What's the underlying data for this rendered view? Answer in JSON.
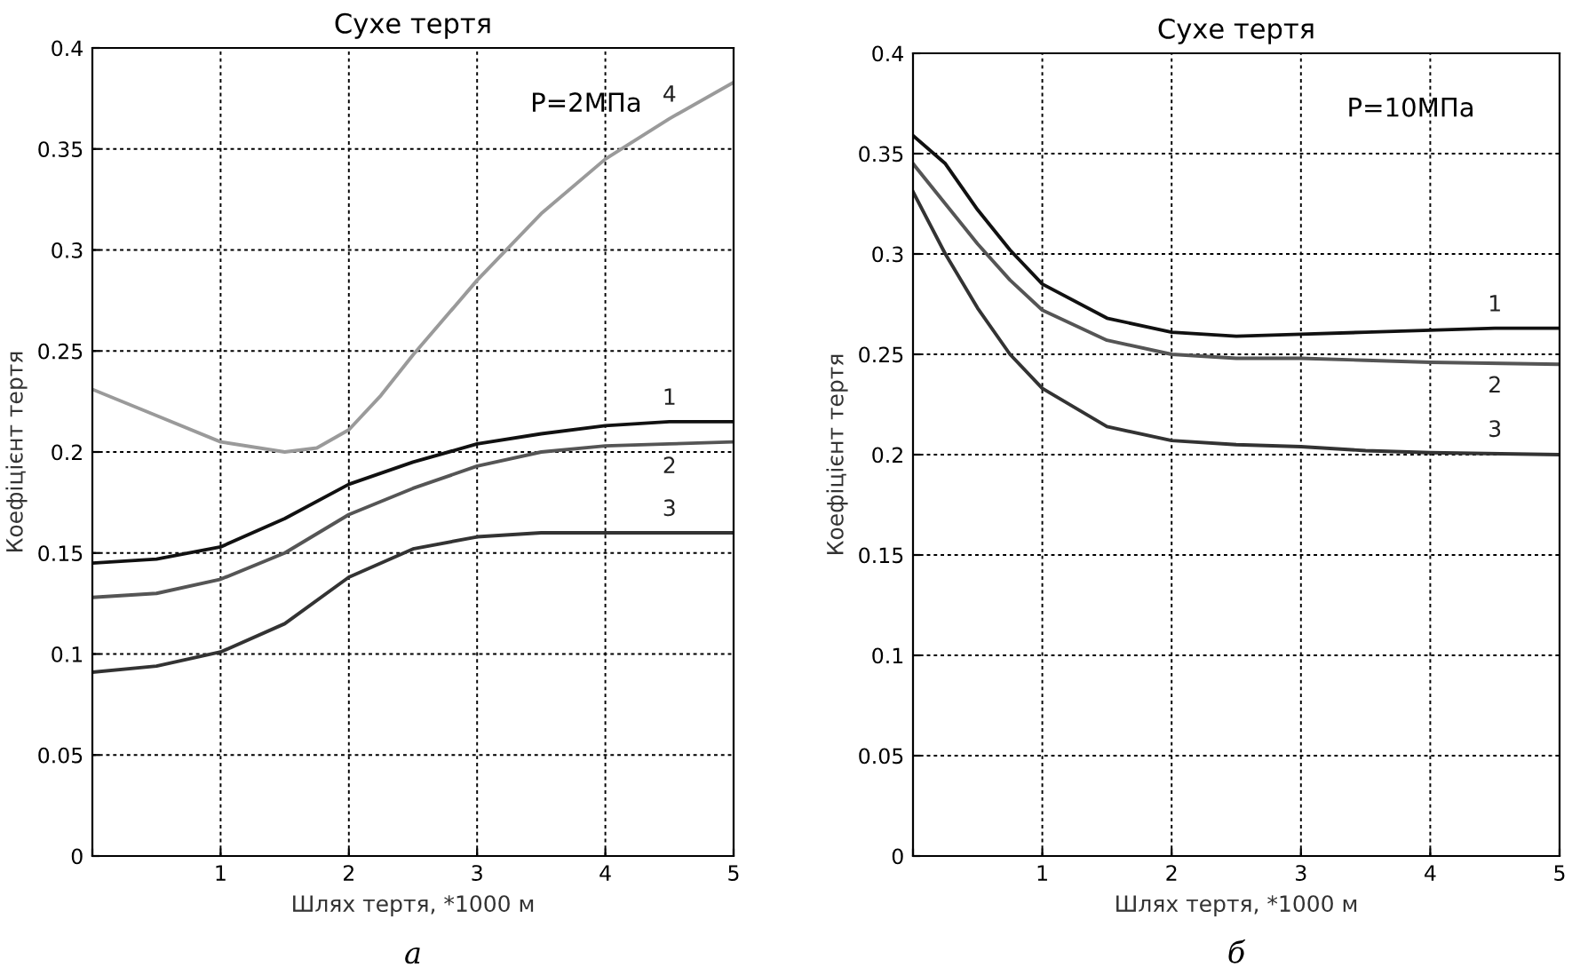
{
  "chart_data": [
    {
      "type": "line",
      "title": "Сухе тертя",
      "xlabel": "Шлях тертя, *1000 м",
      "ylabel": "Коефіцієнт тертя",
      "xlim": [
        0,
        5
      ],
      "xticks": [
        {
          "value": 0,
          "label": null
        },
        1,
        2,
        3,
        4,
        5
      ],
      "ylim": [
        0,
        0.4
      ],
      "yticks": [
        0,
        0.05,
        0.1,
        0.15,
        0.2,
        0.25,
        0.3,
        0.35,
        0.4
      ],
      "grid": true,
      "line_style": "solid",
      "marker": "none",
      "annotations": [
        "P=2МПа",
        "а"
      ],
      "series": [
        {
          "name": "4",
          "color": "#9a9a9a",
          "x": [
            0,
            0.5,
            1,
            1.5,
            1.75,
            2,
            2.25,
            2.5,
            3,
            3.5,
            4,
            4.5,
            5
          ],
          "values": [
            0.231,
            0.218,
            0.205,
            0.2,
            0.202,
            0.211,
            0.228,
            0.248,
            0.285,
            0.318,
            0.345,
            0.365,
            0.383
          ]
        },
        {
          "name": "1",
          "color": "#111111",
          "x": [
            0,
            0.5,
            1,
            1.5,
            2,
            2.5,
            3,
            3.5,
            4,
            4.5,
            5
          ],
          "values": [
            0.145,
            0.147,
            0.153,
            0.167,
            0.184,
            0.195,
            0.204,
            0.209,
            0.213,
            0.215,
            0.215
          ]
        },
        {
          "name": "2",
          "color": "#555555",
          "x": [
            0,
            0.5,
            1,
            1.5,
            2,
            2.5,
            3,
            3.5,
            4,
            4.5,
            5
          ],
          "values": [
            0.128,
            0.13,
            0.137,
            0.15,
            0.169,
            0.182,
            0.193,
            0.2,
            0.203,
            0.204,
            0.205
          ]
        },
        {
          "name": "3",
          "color": "#333333",
          "x": [
            0,
            0.5,
            1,
            1.5,
            2,
            2.5,
            3,
            3.5,
            4,
            4.5,
            5
          ],
          "values": [
            0.091,
            0.094,
            0.101,
            0.115,
            0.138,
            0.152,
            0.158,
            0.16,
            0.16,
            0.16,
            0.16
          ]
        }
      ]
    },
    {
      "type": "line",
      "title": "Сухе тертя",
      "xlabel": "Шлях тертя, *1000 м",
      "ylabel": "Коефіцієнт тертя",
      "xlim": [
        0,
        5
      ],
      "xticks": [
        {
          "value": 0,
          "label": null
        },
        1,
        2,
        3,
        4,
        5
      ],
      "ylim": [
        0,
        0.4
      ],
      "yticks": [
        0,
        0.05,
        0.1,
        0.15,
        0.2,
        0.25,
        0.3,
        0.35,
        0.4
      ],
      "grid": true,
      "line_style": "solid",
      "marker": "none",
      "annotations": [
        "P=10МПа",
        "б"
      ],
      "series": [
        {
          "name": "1",
          "color": "#111111",
          "x": [
            0,
            0.25,
            0.5,
            0.75,
            1,
            1.5,
            2,
            2.5,
            3,
            3.5,
            4,
            4.5,
            5
          ],
          "values": [
            0.359,
            0.345,
            0.322,
            0.302,
            0.285,
            0.268,
            0.261,
            0.259,
            0.26,
            0.261,
            0.262,
            0.263,
            0.263
          ]
        },
        {
          "name": "2",
          "color": "#555555",
          "x": [
            0,
            0.25,
            0.5,
            0.75,
            1,
            1.5,
            2,
            2.5,
            3,
            3.5,
            4,
            5
          ],
          "values": [
            0.345,
            0.325,
            0.305,
            0.287,
            0.272,
            0.257,
            0.25,
            0.248,
            0.248,
            0.247,
            0.246,
            0.245
          ]
        },
        {
          "name": "3",
          "color": "#333333",
          "x": [
            0,
            0.25,
            0.5,
            0.75,
            1,
            1.5,
            2,
            2.5,
            3,
            3.5,
            4,
            5
          ],
          "values": [
            0.331,
            0.3,
            0.273,
            0.25,
            0.233,
            0.214,
            0.207,
            0.205,
            0.204,
            0.202,
            0.201,
            0.2
          ]
        }
      ]
    }
  ]
}
